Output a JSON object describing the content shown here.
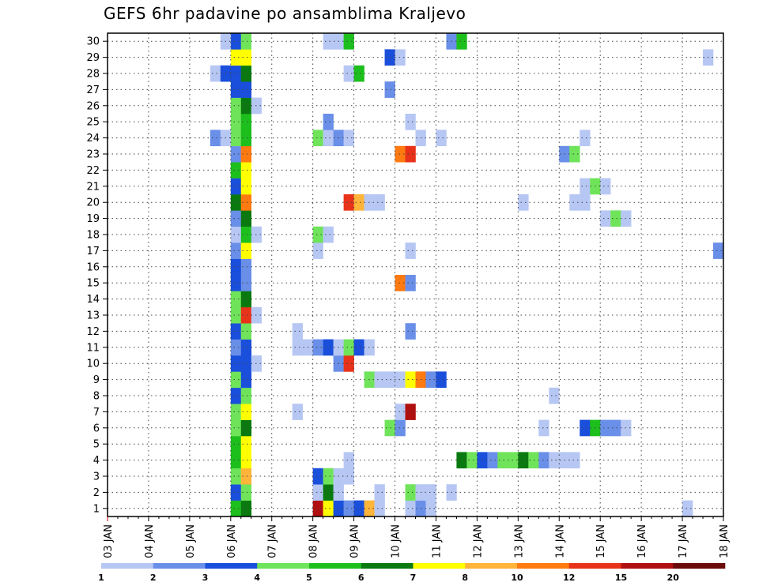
{
  "title": "GEFS 6hr padavine po ansamblima Kraljevo",
  "chart_data": {
    "type": "heatmap",
    "title": "GEFS 6hr padavine po ansamblima Kraljevo",
    "xlabel": "",
    "ylabel": "",
    "x_tick_labels": [
      "03 JAN",
      "04 JAN",
      "05 JAN",
      "06 JAN",
      "07 JAN",
      "08 JAN",
      "09 JAN",
      "10 JAN",
      "11 JAN",
      "12 JAN",
      "13 JAN",
      "14 JAN",
      "15 JAN",
      "16 JAN",
      "17 JAN",
      "18 JAN"
    ],
    "x_range": [
      "03 JAN 00 UTC",
      "18 JAN 00 UTC"
    ],
    "x_step_hours": 6,
    "y_tick_labels": [
      "1",
      "2",
      "3",
      "4",
      "5",
      "6",
      "7",
      "8",
      "9",
      "10",
      "11",
      "12",
      "13",
      "14",
      "15",
      "16",
      "17",
      "18",
      "19",
      "20",
      "21",
      "22",
      "23",
      "24",
      "25",
      "26",
      "27",
      "28",
      "29",
      "30"
    ],
    "y_range": [
      0,
      30
    ],
    "grid": true,
    "colorbar": {
      "placement": "bottom",
      "labels": [
        "1",
        "2",
        "3",
        "4",
        "5",
        "6",
        "7",
        "8",
        "10",
        "12",
        "15",
        "20"
      ],
      "colors": [
        "#b7c7f4",
        "#6a8fe8",
        "#1a4fdc",
        "#6fe45a",
        "#1dbf1d",
        "#0a7a10",
        "#ffff00",
        "#ffb43a",
        "#ff7a10",
        "#e8321a",
        "#b01010",
        "#6b0a0a"
      ]
    },
    "cells_note": "member: list of [time_step_index (6h steps from 03 JAN 00), precipitation mm]",
    "cells": {
      "1": [
        [
          12,
          5
        ],
        [
          13,
          6
        ],
        [
          20,
          15
        ],
        [
          21,
          7
        ],
        [
          22,
          3
        ],
        [
          23,
          2
        ],
        [
          24,
          3
        ],
        [
          25,
          8
        ],
        [
          26,
          1
        ],
        [
          29,
          1
        ],
        [
          30,
          2
        ],
        [
          31,
          1
        ],
        [
          56,
          1
        ]
      ],
      "2": [
        [
          12,
          3
        ],
        [
          13,
          4
        ],
        [
          20,
          1
        ],
        [
          21,
          6
        ],
        [
          22,
          1
        ],
        [
          26,
          1
        ],
        [
          29,
          4
        ],
        [
          30,
          1
        ],
        [
          31,
          1
        ],
        [
          33,
          1
        ]
      ],
      "3": [
        [
          12,
          4
        ],
        [
          13,
          8
        ],
        [
          20,
          3
        ],
        [
          21,
          4
        ],
        [
          22,
          1
        ],
        [
          23,
          1
        ]
      ],
      "4": [
        [
          12,
          5
        ],
        [
          13,
          7
        ],
        [
          23,
          1
        ],
        [
          34,
          6
        ],
        [
          35,
          4
        ],
        [
          36,
          3
        ],
        [
          37,
          2
        ],
        [
          38,
          4
        ],
        [
          39,
          4
        ],
        [
          40,
          6
        ],
        [
          41,
          4
        ],
        [
          42,
          2
        ],
        [
          43,
          1
        ],
        [
          44,
          1
        ],
        [
          45,
          1
        ]
      ],
      "5": [
        [
          12,
          5
        ],
        [
          13,
          7
        ]
      ],
      "6": [
        [
          12,
          4
        ],
        [
          13,
          6
        ],
        [
          27,
          4
        ],
        [
          28,
          2
        ],
        [
          42,
          1
        ],
        [
          46,
          3
        ],
        [
          47,
          5
        ],
        [
          48,
          2
        ],
        [
          49,
          2
        ],
        [
          50,
          1
        ]
      ],
      "7": [
        [
          12,
          4
        ],
        [
          13,
          7
        ],
        [
          18,
          1
        ],
        [
          28,
          1
        ],
        [
          29,
          15
        ]
      ],
      "8": [
        [
          12,
          3
        ],
        [
          13,
          4
        ],
        [
          43,
          1
        ]
      ],
      "9": [
        [
          12,
          4
        ],
        [
          13,
          3
        ],
        [
          25,
          4
        ],
        [
          26,
          1
        ],
        [
          27,
          1
        ],
        [
          28,
          1
        ],
        [
          29,
          7
        ],
        [
          30,
          10
        ],
        [
          31,
          2
        ],
        [
          32,
          3
        ]
      ],
      "10": [
        [
          12,
          3
        ],
        [
          13,
          3
        ],
        [
          14,
          1
        ],
        [
          22,
          2
        ],
        [
          23,
          12
        ]
      ],
      "11": [
        [
          12,
          2
        ],
        [
          13,
          3
        ],
        [
          18,
          1
        ],
        [
          19,
          1
        ],
        [
          20,
          2
        ],
        [
          21,
          3
        ],
        [
          22,
          1
        ],
        [
          23,
          4
        ],
        [
          24,
          3
        ],
        [
          25,
          1
        ]
      ],
      "12": [
        [
          12,
          3
        ],
        [
          13,
          4
        ],
        [
          18,
          1
        ],
        [
          29,
          2
        ]
      ],
      "13": [
        [
          12,
          4
        ],
        [
          13,
          12
        ],
        [
          14,
          1
        ]
      ],
      "14": [
        [
          12,
          4
        ],
        [
          13,
          6
        ]
      ],
      "15": [
        [
          12,
          3
        ],
        [
          13,
          2
        ],
        [
          28,
          10
        ],
        [
          29,
          2
        ]
      ],
      "16": [
        [
          12,
          3
        ],
        [
          13,
          2
        ]
      ],
      "17": [
        [
          12,
          2
        ],
        [
          13,
          7
        ],
        [
          20,
          1
        ],
        [
          29,
          1
        ],
        [
          59,
          2
        ]
      ],
      "18": [
        [
          12,
          1
        ],
        [
          13,
          5
        ],
        [
          14,
          1
        ],
        [
          20,
          4
        ],
        [
          21,
          1
        ]
      ],
      "19": [
        [
          12,
          2
        ],
        [
          13,
          6
        ],
        [
          48,
          1
        ],
        [
          49,
          4
        ],
        [
          50,
          1
        ]
      ],
      "20": [
        [
          12,
          6
        ],
        [
          13,
          10
        ],
        [
          23,
          12
        ],
        [
          24,
          8
        ],
        [
          25,
          1
        ],
        [
          26,
          1
        ],
        [
          40,
          1
        ],
        [
          45,
          1
        ],
        [
          46,
          1
        ]
      ],
      "21": [
        [
          12,
          3
        ],
        [
          13,
          7
        ],
        [
          46,
          1
        ],
        [
          47,
          4
        ],
        [
          48,
          1
        ]
      ],
      "22": [
        [
          12,
          5
        ],
        [
          13,
          7
        ]
      ],
      "23": [
        [
          12,
          2
        ],
        [
          13,
          10
        ],
        [
          28,
          10
        ],
        [
          29,
          12
        ],
        [
          44,
          2
        ],
        [
          45,
          4
        ]
      ],
      "24": [
        [
          12,
          4
        ],
        [
          13,
          5
        ],
        [
          10,
          2
        ],
        [
          11,
          1
        ],
        [
          20,
          4
        ],
        [
          21,
          1
        ],
        [
          22,
          2
        ],
        [
          23,
          1
        ],
        [
          30,
          1
        ],
        [
          32,
          1
        ],
        [
          46,
          1
        ]
      ],
      "25": [
        [
          12,
          4
        ],
        [
          13,
          5
        ],
        [
          21,
          2
        ],
        [
          29,
          1
        ]
      ],
      "26": [
        [
          12,
          4
        ],
        [
          13,
          6
        ],
        [
          14,
          1
        ]
      ],
      "27": [
        [
          12,
          3
        ],
        [
          13,
          3
        ],
        [
          27,
          2
        ]
      ],
      "28": [
        [
          12,
          3
        ],
        [
          13,
          6
        ],
        [
          10,
          1
        ],
        [
          11,
          3
        ],
        [
          23,
          1
        ],
        [
          24,
          5
        ]
      ],
      "29": [
        [
          12,
          0
        ],
        [
          13,
          7
        ],
        [
          27,
          3
        ],
        [
          28,
          1
        ],
        [
          58,
          1
        ]
      ],
      "30": [
        [
          12,
          3
        ],
        [
          13,
          4
        ],
        [
          11,
          1
        ],
        [
          21,
          1
        ],
        [
          22,
          1
        ],
        [
          23,
          5
        ],
        [
          33,
          2
        ],
        [
          34,
          5
        ]
      ]
    }
  }
}
